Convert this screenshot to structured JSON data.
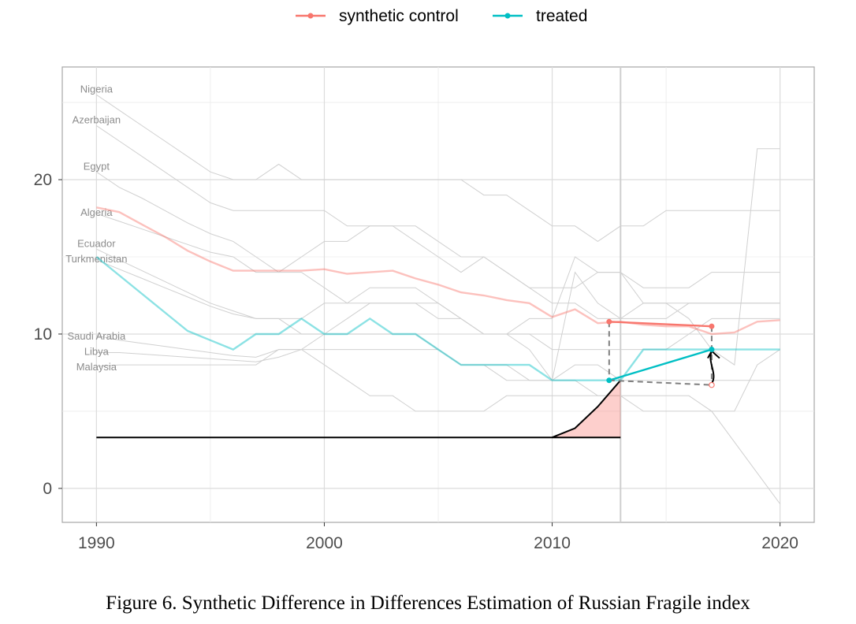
{
  "caption": "Figure 6. Synthetic Difference in Differences Estimation of Russian Fragile index",
  "legend": {
    "items": [
      {
        "label": "synthetic control",
        "color": "#F8766D"
      },
      {
        "label": "treated",
        "color": "#00BFC4"
      }
    ]
  },
  "chart_data": {
    "type": "line",
    "title": "",
    "xlabel": "",
    "ylabel": "",
    "xlim": [
      1988.5,
      2021.5
    ],
    "ylim": [
      -2.2,
      27.3
    ],
    "x_ticks": [
      1990,
      2000,
      2010,
      2020
    ],
    "y_ticks": [
      0,
      10,
      20
    ],
    "grid": true,
    "legend_position": "top",
    "treatment_year": 2013,
    "series": [
      {
        "name": "synthetic control",
        "color": "#F8766D",
        "x": [
          1990,
          1991,
          1992,
          1993,
          1994,
          1995,
          1996,
          1997,
          1998,
          1999,
          2000,
          2001,
          2002,
          2003,
          2004,
          2005,
          2006,
          2007,
          2008,
          2009,
          2010,
          2011,
          2012,
          2013,
          2014,
          2015,
          2016,
          2017,
          2018,
          2019,
          2020
        ],
        "y": [
          18.2,
          17.9,
          17.1,
          16.3,
          15.4,
          14.7,
          14.1,
          14.1,
          14.1,
          14.1,
          14.2,
          13.9,
          14.0,
          14.1,
          13.6,
          13.2,
          12.7,
          12.5,
          12.2,
          12.0,
          11.1,
          11.6,
          10.7,
          10.8,
          10.6,
          10.5,
          10.5,
          10.0,
          10.1,
          10.8,
          10.9
        ]
      },
      {
        "name": "treated",
        "color": "#00BFC4",
        "x": [
          1990,
          1991,
          1992,
          1993,
          1994,
          1995,
          1996,
          1997,
          1998,
          1999,
          2000,
          2001,
          2002,
          2003,
          2004,
          2005,
          2006,
          2007,
          2008,
          2009,
          2010,
          2011,
          2012,
          2013,
          2014,
          2015,
          2016,
          2017,
          2018,
          2019,
          2020
        ],
        "y": [
          15.0,
          13.8,
          12.6,
          11.4,
          10.2,
          9.6,
          9.0,
          10.0,
          10.0,
          11.0,
          10.0,
          10.0,
          11.0,
          10.0,
          10.0,
          9.0,
          8.0,
          8.0,
          8.0,
          8.0,
          7.0,
          7.0,
          7.0,
          7.0,
          9.0,
          9.0,
          9.0,
          9.0,
          9.0,
          9.0,
          9.0
        ]
      }
    ],
    "controls": [
      {
        "name": "Nigeria",
        "label_y": 25.9,
        "y": [
          25.5,
          24.5,
          23.5,
          22.5,
          21.5,
          20.5,
          20,
          20,
          21,
          20,
          20,
          20,
          20,
          20,
          20,
          20,
          20,
          19,
          19,
          18,
          17,
          17,
          16,
          17,
          17,
          18,
          18,
          18,
          18,
          18,
          18
        ]
      },
      {
        "name": "Azerbaijan",
        "label_y": 23.9,
        "y": [
          23.5,
          22.5,
          21.5,
          20.5,
          19.5,
          18.5,
          18,
          18,
          18,
          18,
          18,
          17,
          17,
          17,
          16,
          15,
          14,
          15,
          14,
          13,
          13,
          13,
          14,
          14,
          12,
          12,
          12,
          12,
          12,
          12,
          12
        ]
      },
      {
        "name": "Egypt",
        "label_y": 20.9,
        "y": [
          20.5,
          19.5,
          18.8,
          18,
          17.2,
          16.5,
          16,
          15,
          14,
          15,
          16,
          16,
          17,
          17,
          17,
          16,
          15,
          15,
          14,
          13,
          12,
          12,
          11,
          11,
          11,
          11,
          12,
          12,
          12,
          12,
          12
        ]
      },
      {
        "name": "Algeria",
        "label_y": 17.9,
        "y": [
          17.8,
          17.3,
          16.8,
          16.3,
          15.8,
          15.3,
          15,
          14,
          14,
          14,
          13,
          12,
          12,
          12,
          12,
          11,
          11,
          10,
          10,
          10,
          9,
          9,
          9,
          9,
          9,
          9,
          10,
          11,
          11,
          11,
          11
        ]
      },
      {
        "name": "Ecuador",
        "label_y": 15.9,
        "y": [
          15.5,
          14.8,
          14.1,
          13.4,
          12.7,
          12.0,
          11.5,
          11,
          11,
          10,
          10,
          10,
          10,
          10,
          10,
          9,
          8,
          8,
          8,
          7,
          7,
          8,
          8,
          7,
          7,
          7,
          7,
          7,
          7,
          7,
          7
        ]
      },
      {
        "name": "Turkmenistan",
        "label_y": 14.9,
        "y": [
          14.8,
          14.2,
          13.6,
          13.0,
          12.4,
          11.8,
          11.3,
          11,
          11,
          11,
          12,
          12,
          13,
          13,
          13,
          12,
          11,
          10,
          10,
          11,
          11,
          15,
          14,
          14,
          13,
          13,
          13,
          14,
          14,
          14,
          14
        ]
      },
      {
        "name": "Saudi Arabia",
        "label_y": 9.9,
        "y": [
          9.9,
          9.6,
          9.4,
          9.2,
          9.0,
          8.8,
          8.6,
          8.5,
          9,
          9,
          8,
          7,
          6,
          6,
          5,
          5,
          5,
          5,
          6,
          6,
          6,
          6,
          6,
          6,
          5,
          5,
          5,
          5,
          5,
          8,
          9
        ]
      },
      {
        "name": "Libya",
        "label_y": 8.9,
        "y": [
          8.8,
          8.8,
          8.7,
          8.6,
          8.5,
          8.4,
          8.3,
          8.2,
          8.5,
          9,
          10,
          11,
          12,
          12,
          12,
          12,
          11,
          10,
          10,
          9,
          7,
          14,
          12,
          11,
          12,
          12,
          11,
          9,
          8,
          22,
          22
        ]
      },
      {
        "name": "Malaysia",
        "label_y": 7.9,
        "y": [
          7.9,
          8,
          8,
          8,
          8,
          8,
          8,
          8,
          9,
          9,
          9,
          9,
          9,
          9,
          9,
          9,
          8,
          8,
          7,
          7,
          7,
          7,
          6,
          6,
          6,
          6,
          6,
          5,
          3,
          1,
          -1
        ]
      }
    ],
    "sdid": {
      "pre_point": {
        "x": 2012.5,
        "synthetic": 10.8,
        "treated": 7.0
      },
      "post_point": {
        "x": 2017,
        "synthetic": 10.5,
        "treated": 9.0,
        "counterfactual": 6.7
      },
      "weights_baseline": 3.3,
      "weights_curve": {
        "x": [
          2010,
          2011,
          2012,
          2013
        ],
        "y": [
          3.3,
          3.9,
          5.3,
          7.0
        ]
      }
    }
  }
}
